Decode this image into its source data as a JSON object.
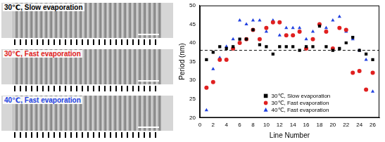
{
  "panels": [
    {
      "label": "30℃, Slow evaporation",
      "color": "#000000"
    },
    {
      "label": "30℃, Fast evaporation",
      "color": "#e02020"
    },
    {
      "label": "40℃, Fast evaporation",
      "color": "#2040e0"
    }
  ],
  "chart_data": {
    "type": "scatter",
    "x_label": "Line Number",
    "y_label": "Period (nm)",
    "x": [
      1,
      2,
      3,
      4,
      5,
      6,
      7,
      8,
      9,
      10,
      11,
      12,
      13,
      14,
      15,
      16,
      17,
      18,
      19,
      20,
      21,
      22,
      23,
      24,
      25,
      26
    ],
    "series": [
      {
        "name": "30℃, Slow evaporation",
        "color": "#000000",
        "marker": "square",
        "values": [
          35.5,
          37.5,
          39,
          38.5,
          39,
          41,
          41,
          43.5,
          39.5,
          39,
          37,
          39,
          39,
          39,
          38,
          39,
          39,
          44.5,
          39,
          38,
          38.5,
          40,
          41.5,
          38,
          37,
          35.5
        ]
      },
      {
        "name": "30℃, Fast evaporation",
        "color": "#e02020",
        "marker": "circle",
        "values": [
          28,
          29.5,
          35.5,
          35.5,
          38.5,
          40,
          41,
          43.5,
          41,
          44,
          45.5,
          45.5,
          42,
          42,
          43,
          38.5,
          41,
          45,
          43,
          38.5,
          44,
          43.5,
          32,
          32.5,
          27.5,
          32
        ]
      },
      {
        "name": "40℃, Fast evaporation",
        "color": "#2040e0",
        "marker": "triangle",
        "values": [
          22,
          33,
          36,
          39,
          41,
          46,
          45,
          46,
          46,
          43,
          46,
          42,
          44,
          44,
          44,
          41,
          43,
          45,
          44,
          46,
          47,
          43,
          41,
          38,
          35.5,
          27
        ]
      }
    ],
    "reference_line": {
      "value": 38,
      "line_style": "dashed",
      "color": "#000000"
    },
    "xlim": [
      0,
      27
    ],
    "xticks": [
      0,
      2,
      4,
      6,
      8,
      10,
      12,
      14,
      16,
      18,
      20,
      22,
      24,
      26
    ],
    "ylim": [
      20,
      50
    ],
    "yticks": [
      20,
      25,
      30,
      35,
      40,
      45,
      50
    ],
    "grid": false,
    "legend": "lower center"
  }
}
